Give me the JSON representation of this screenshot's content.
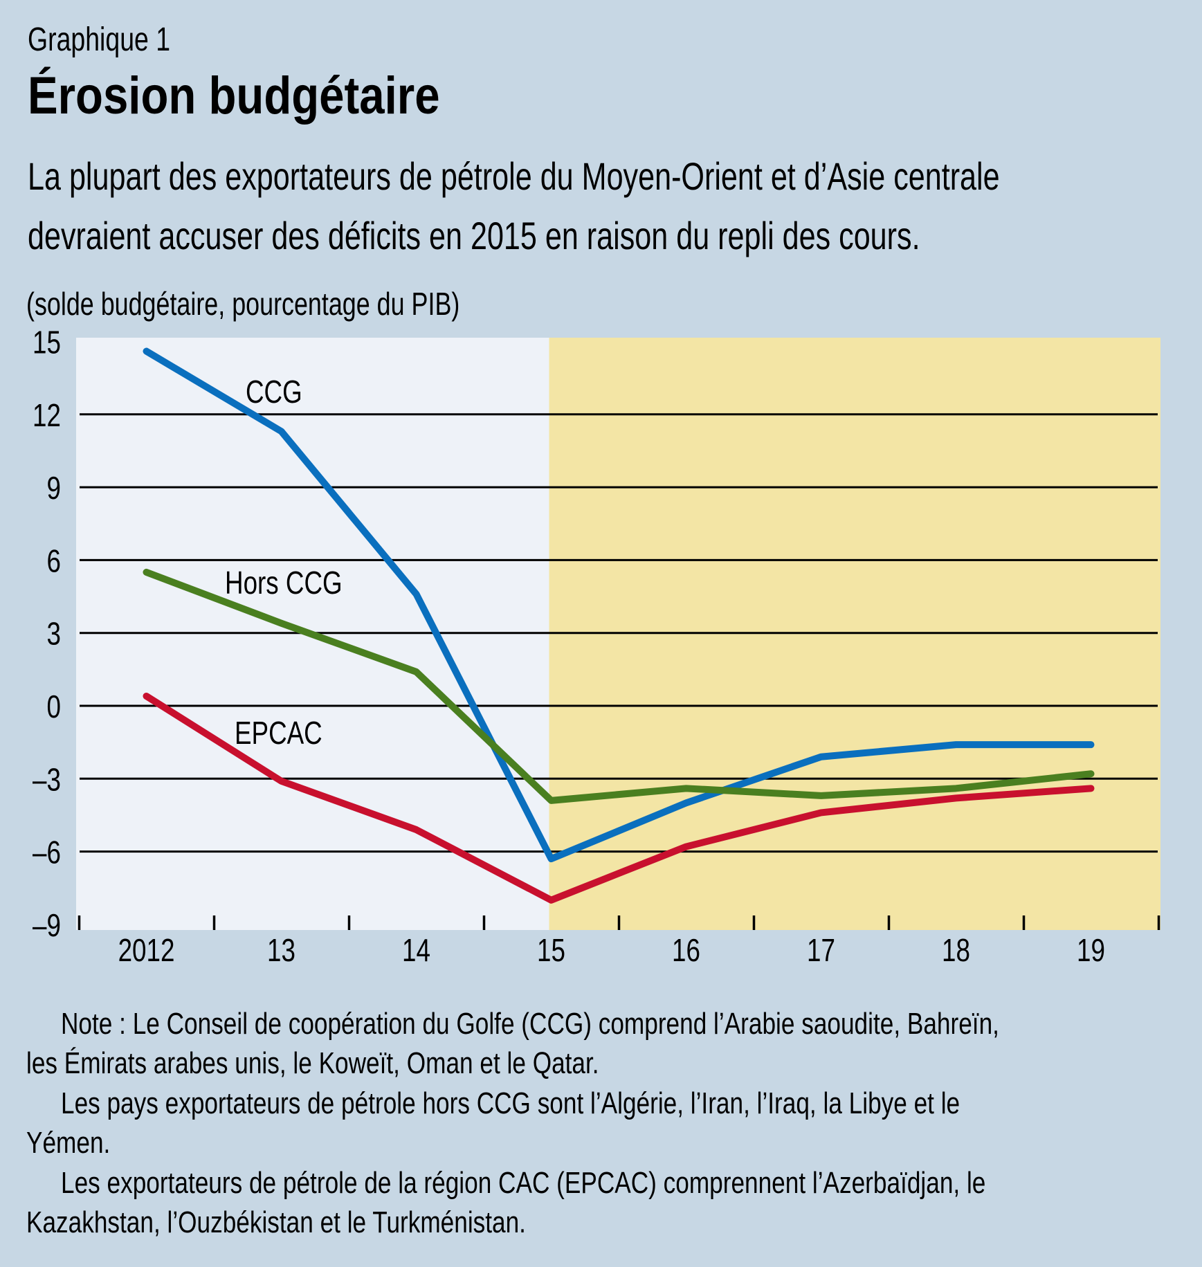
{
  "header": {
    "figure_label": "Graphique 1",
    "title": "Érosion budgétaire",
    "subtitle_line1": "La plupart des exportateurs de pétrole du Moyen-Orient et d’Asie centrale",
    "subtitle_line2": "devraient accuser des déficits en 2015 en raison du repli des cours.",
    "unit_label": "(solde budgétaire, pourcentage du PIB)"
  },
  "chart_data": {
    "type": "line",
    "title": "Érosion budgétaire",
    "xlabel": "",
    "ylabel": "(solde budgétaire, pourcentage du PIB)",
    "categories": [
      "2012",
      "13",
      "14",
      "15",
      "16",
      "17",
      "18",
      "19"
    ],
    "ylim": [
      -9,
      15
    ],
    "yticks": [
      15,
      12,
      9,
      6,
      3,
      0,
      -3,
      -6,
      -9
    ],
    "ytick_labels": [
      "15",
      "12",
      "9",
      "6",
      "3",
      "0",
      "–3",
      "–6",
      "–9"
    ],
    "grid": true,
    "shaded_region": {
      "from_category": "15",
      "to_category": "19",
      "meaning": "projections",
      "color": "#f3e5a5"
    },
    "series": [
      {
        "name": "CCG",
        "color": "#0a6fbe",
        "values": [
          14.6,
          11.3,
          4.6,
          -6.3,
          -4.0,
          -2.1,
          -1.6,
          -1.6
        ],
        "label_anchor": {
          "category": "13",
          "value": 13.0
        }
      },
      {
        "name": "Hors CCG",
        "color": "#4a7f20",
        "values": [
          5.5,
          3.4,
          1.4,
          -3.9,
          -3.4,
          -3.7,
          -3.4,
          -2.8
        ],
        "label_anchor": {
          "category": "13",
          "value": 4.6
        }
      },
      {
        "name": "EPCAC",
        "color": "#c8102e",
        "values": [
          0.4,
          -3.1,
          -5.1,
          -8.0,
          -5.8,
          -4.4,
          -3.8,
          -3.4
        ],
        "label_anchor": {
          "category": "13",
          "value": -1.2
        }
      }
    ],
    "legend": "inline-labels"
  },
  "notes": [
    {
      "text": "Note : Le Conseil de coopération du Golfe (CCG) comprend l’Arabie saoudite, Bahreïn,",
      "indent": true
    },
    {
      "text": "les Émirats arabes unis, le Koweït, Oman et le Qatar.",
      "indent": false
    },
    {
      "text": "Les pays exportateurs de pétrole hors CCG sont l’Algérie, l’Iran, l’Iraq, la Libye et le",
      "indent": true
    },
    {
      "text": "Yémen.",
      "indent": false
    },
    {
      "text": "Les exportateurs de pétrole de la région CAC (EPCAC) comprennent l’Azerbaïdjan, le",
      "indent": true
    },
    {
      "text": "Kazakhstan, l’Ouzbékistan et le Turkménistan.",
      "indent": false
    }
  ],
  "colors": {
    "page_background": "#c7d7e4",
    "plot_background": "#eef2f8",
    "projection_background": "#f3e5a5"
  }
}
